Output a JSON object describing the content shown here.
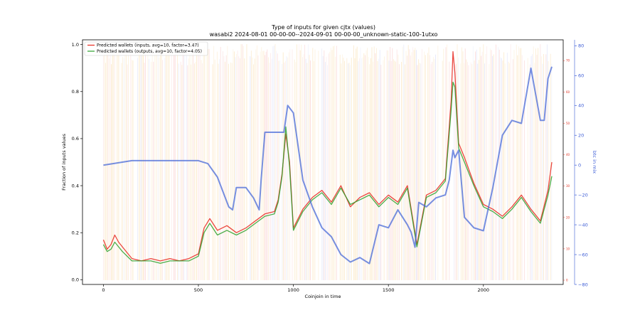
{
  "chart_data": {
    "type": "line",
    "title": "Type of inputs for given cjtx (values)",
    "subtitle": "wasabi2 2024-08-01 00-00-00--2024-09-01 00-00-00_unknown-static-100-1utxo",
    "xlabel": "Coinjoin in time",
    "ylabel": "Fraction of inputs values",
    "ylabel_right": "btc in mix",
    "xlim": [
      -110,
      2420
    ],
    "ylim": [
      -0.02,
      1.02
    ],
    "ylim_right": [
      -80,
      84
    ],
    "xticks": [
      "0",
      "500",
      "1000",
      "1500",
      "2000"
    ],
    "xtick_values": [
      0,
      500,
      1000,
      1500,
      2000
    ],
    "yticks": [
      "0.0",
      "0.2",
      "0.4",
      "0.6",
      "0.8",
      "1.0"
    ],
    "ytick_values": [
      0.0,
      0.2,
      0.4,
      0.6,
      0.8,
      1.0
    ],
    "yticks_right": [
      "80",
      "60",
      "40",
      "20",
      "0",
      "−20",
      "−40",
      "−60",
      "−80"
    ],
    "ytick_right_values": [
      80,
      60,
      40,
      20,
      0,
      -20,
      -40,
      -60,
      -80
    ],
    "yticks_right_small": [
      "70",
      "60",
      "50",
      "40",
      "30",
      "20",
      "10",
      "0"
    ],
    "legend_position": "top-left",
    "series": [
      {
        "name": "Predicted wallets (inputs, avg=10, factor=3.47)",
        "color": "#e8281e",
        "x": [
          0,
          20,
          40,
          60,
          80,
          100,
          150,
          200,
          250,
          300,
          350,
          400,
          450,
          500,
          530,
          560,
          600,
          650,
          700,
          750,
          800,
          850,
          900,
          920,
          940,
          960,
          980,
          1000,
          1050,
          1100,
          1150,
          1200,
          1250,
          1300,
          1350,
          1400,
          1450,
          1500,
          1550,
          1600,
          1650,
          1700,
          1750,
          1800,
          1830,
          1840,
          1850,
          1870,
          1900,
          1950,
          2000,
          2050,
          2100,
          2150,
          2200,
          2250,
          2300,
          2340,
          2360
        ],
        "values": [
          0.17,
          0.13,
          0.15,
          0.19,
          0.16,
          0.14,
          0.09,
          0.08,
          0.09,
          0.08,
          0.09,
          0.08,
          0.09,
          0.11,
          0.22,
          0.26,
          0.21,
          0.23,
          0.2,
          0.22,
          0.25,
          0.28,
          0.29,
          0.34,
          0.45,
          0.62,
          0.5,
          0.22,
          0.3,
          0.35,
          0.38,
          0.33,
          0.4,
          0.31,
          0.35,
          0.37,
          0.32,
          0.36,
          0.33,
          0.4,
          0.15,
          0.36,
          0.38,
          0.43,
          0.76,
          0.97,
          0.88,
          0.58,
          0.52,
          0.41,
          0.32,
          0.3,
          0.27,
          0.31,
          0.36,
          0.3,
          0.25,
          0.38,
          0.5
        ]
      },
      {
        "name": "Predicted wallets (outputs, avg=10, factor=4.05)",
        "color": "#2ca02c",
        "x": [
          0,
          20,
          40,
          60,
          80,
          100,
          150,
          200,
          250,
          300,
          350,
          400,
          450,
          500,
          530,
          560,
          600,
          650,
          700,
          750,
          800,
          850,
          900,
          920,
          940,
          960,
          980,
          1000,
          1050,
          1100,
          1150,
          1200,
          1250,
          1300,
          1350,
          1400,
          1450,
          1500,
          1550,
          1600,
          1650,
          1700,
          1750,
          1800,
          1830,
          1840,
          1850,
          1870,
          1900,
          1950,
          2000,
          2050,
          2100,
          2150,
          2200,
          2250,
          2300,
          2340,
          2360
        ],
        "values": [
          0.15,
          0.12,
          0.13,
          0.16,
          0.14,
          0.12,
          0.08,
          0.08,
          0.08,
          0.07,
          0.08,
          0.08,
          0.08,
          0.1,
          0.2,
          0.24,
          0.19,
          0.21,
          0.19,
          0.21,
          0.24,
          0.27,
          0.28,
          0.33,
          0.44,
          0.65,
          0.48,
          0.21,
          0.29,
          0.34,
          0.37,
          0.32,
          0.39,
          0.32,
          0.34,
          0.36,
          0.31,
          0.35,
          0.32,
          0.39,
          0.14,
          0.35,
          0.37,
          0.42,
          0.72,
          0.84,
          0.82,
          0.56,
          0.5,
          0.4,
          0.31,
          0.29,
          0.26,
          0.3,
          0.35,
          0.29,
          0.24,
          0.36,
          0.44
        ]
      },
      {
        "name": "btc in mix",
        "color": "#4a6bd8",
        "axis": "right",
        "x": [
          0,
          50,
          100,
          150,
          200,
          300,
          400,
          500,
          550,
          600,
          630,
          660,
          680,
          700,
          750,
          790,
          820,
          830,
          850,
          900,
          950,
          970,
          1000,
          1050,
          1100,
          1150,
          1200,
          1250,
          1300,
          1350,
          1400,
          1450,
          1500,
          1550,
          1600,
          1620,
          1640,
          1660,
          1700,
          1750,
          1800,
          1820,
          1840,
          1850,
          1870,
          1900,
          1950,
          2000,
          2050,
          2100,
          2150,
          2200,
          2250,
          2300,
          2320,
          2340,
          2360
        ],
        "values": [
          0,
          1,
          2,
          3,
          3,
          3,
          3,
          3,
          1,
          -8,
          -18,
          -28,
          -30,
          -15,
          -15,
          -22,
          -30,
          -10,
          22,
          22,
          22,
          40,
          35,
          -10,
          -28,
          -42,
          -48,
          -60,
          -65,
          -62,
          -66,
          -40,
          -42,
          -30,
          -40,
          -45,
          -55,
          -25,
          -28,
          -22,
          -20,
          -10,
          10,
          5,
          10,
          -35,
          -42,
          -44,
          -15,
          20,
          30,
          28,
          65,
          30,
          30,
          58,
          66
        ]
      }
    ]
  }
}
